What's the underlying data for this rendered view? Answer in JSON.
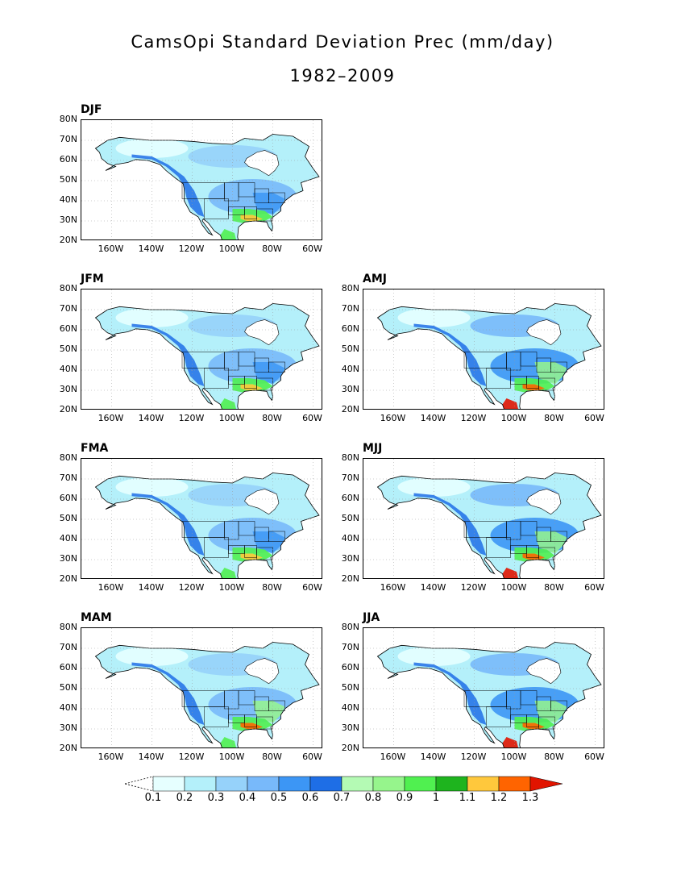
{
  "title": "CamsOpi Standard Deviation Prec (mm/day)",
  "subtitle": "1982–2009",
  "panels": [
    {
      "label": "DJF",
      "intensity": 0.55
    },
    {
      "label": "JFM",
      "intensity": 0.6
    },
    {
      "label": "AMJ",
      "intensity": 0.9
    },
    {
      "label": "FMA",
      "intensity": 0.65
    },
    {
      "label": "MJJ",
      "intensity": 1.0
    },
    {
      "label": "MAM",
      "intensity": 0.75
    },
    {
      "label": "JJA",
      "intensity": 0.95
    }
  ],
  "lat_labels": [
    "80N",
    "70N",
    "60N",
    "50N",
    "40N",
    "30N",
    "20N"
  ],
  "lon_labels": [
    "160W",
    "140W",
    "120W",
    "100W",
    "80W",
    "60W"
  ],
  "colorbar": {
    "ticks": [
      "0.1",
      "0.2",
      "0.3",
      "0.4",
      "0.5",
      "0.6",
      "0.7",
      "0.8",
      "0.9",
      "1",
      "1.1",
      "1.2",
      "1.3"
    ],
    "colors": [
      "#e6ffff",
      "#b4f0fa",
      "#96d2fa",
      "#78b9fa",
      "#3c96f5",
      "#1e6ee6",
      "#b4fab4",
      "#96f58c",
      "#50f050",
      "#1eb41e",
      "#ffc83c",
      "#ff6400",
      "#e11400",
      "#a50000"
    ]
  }
}
